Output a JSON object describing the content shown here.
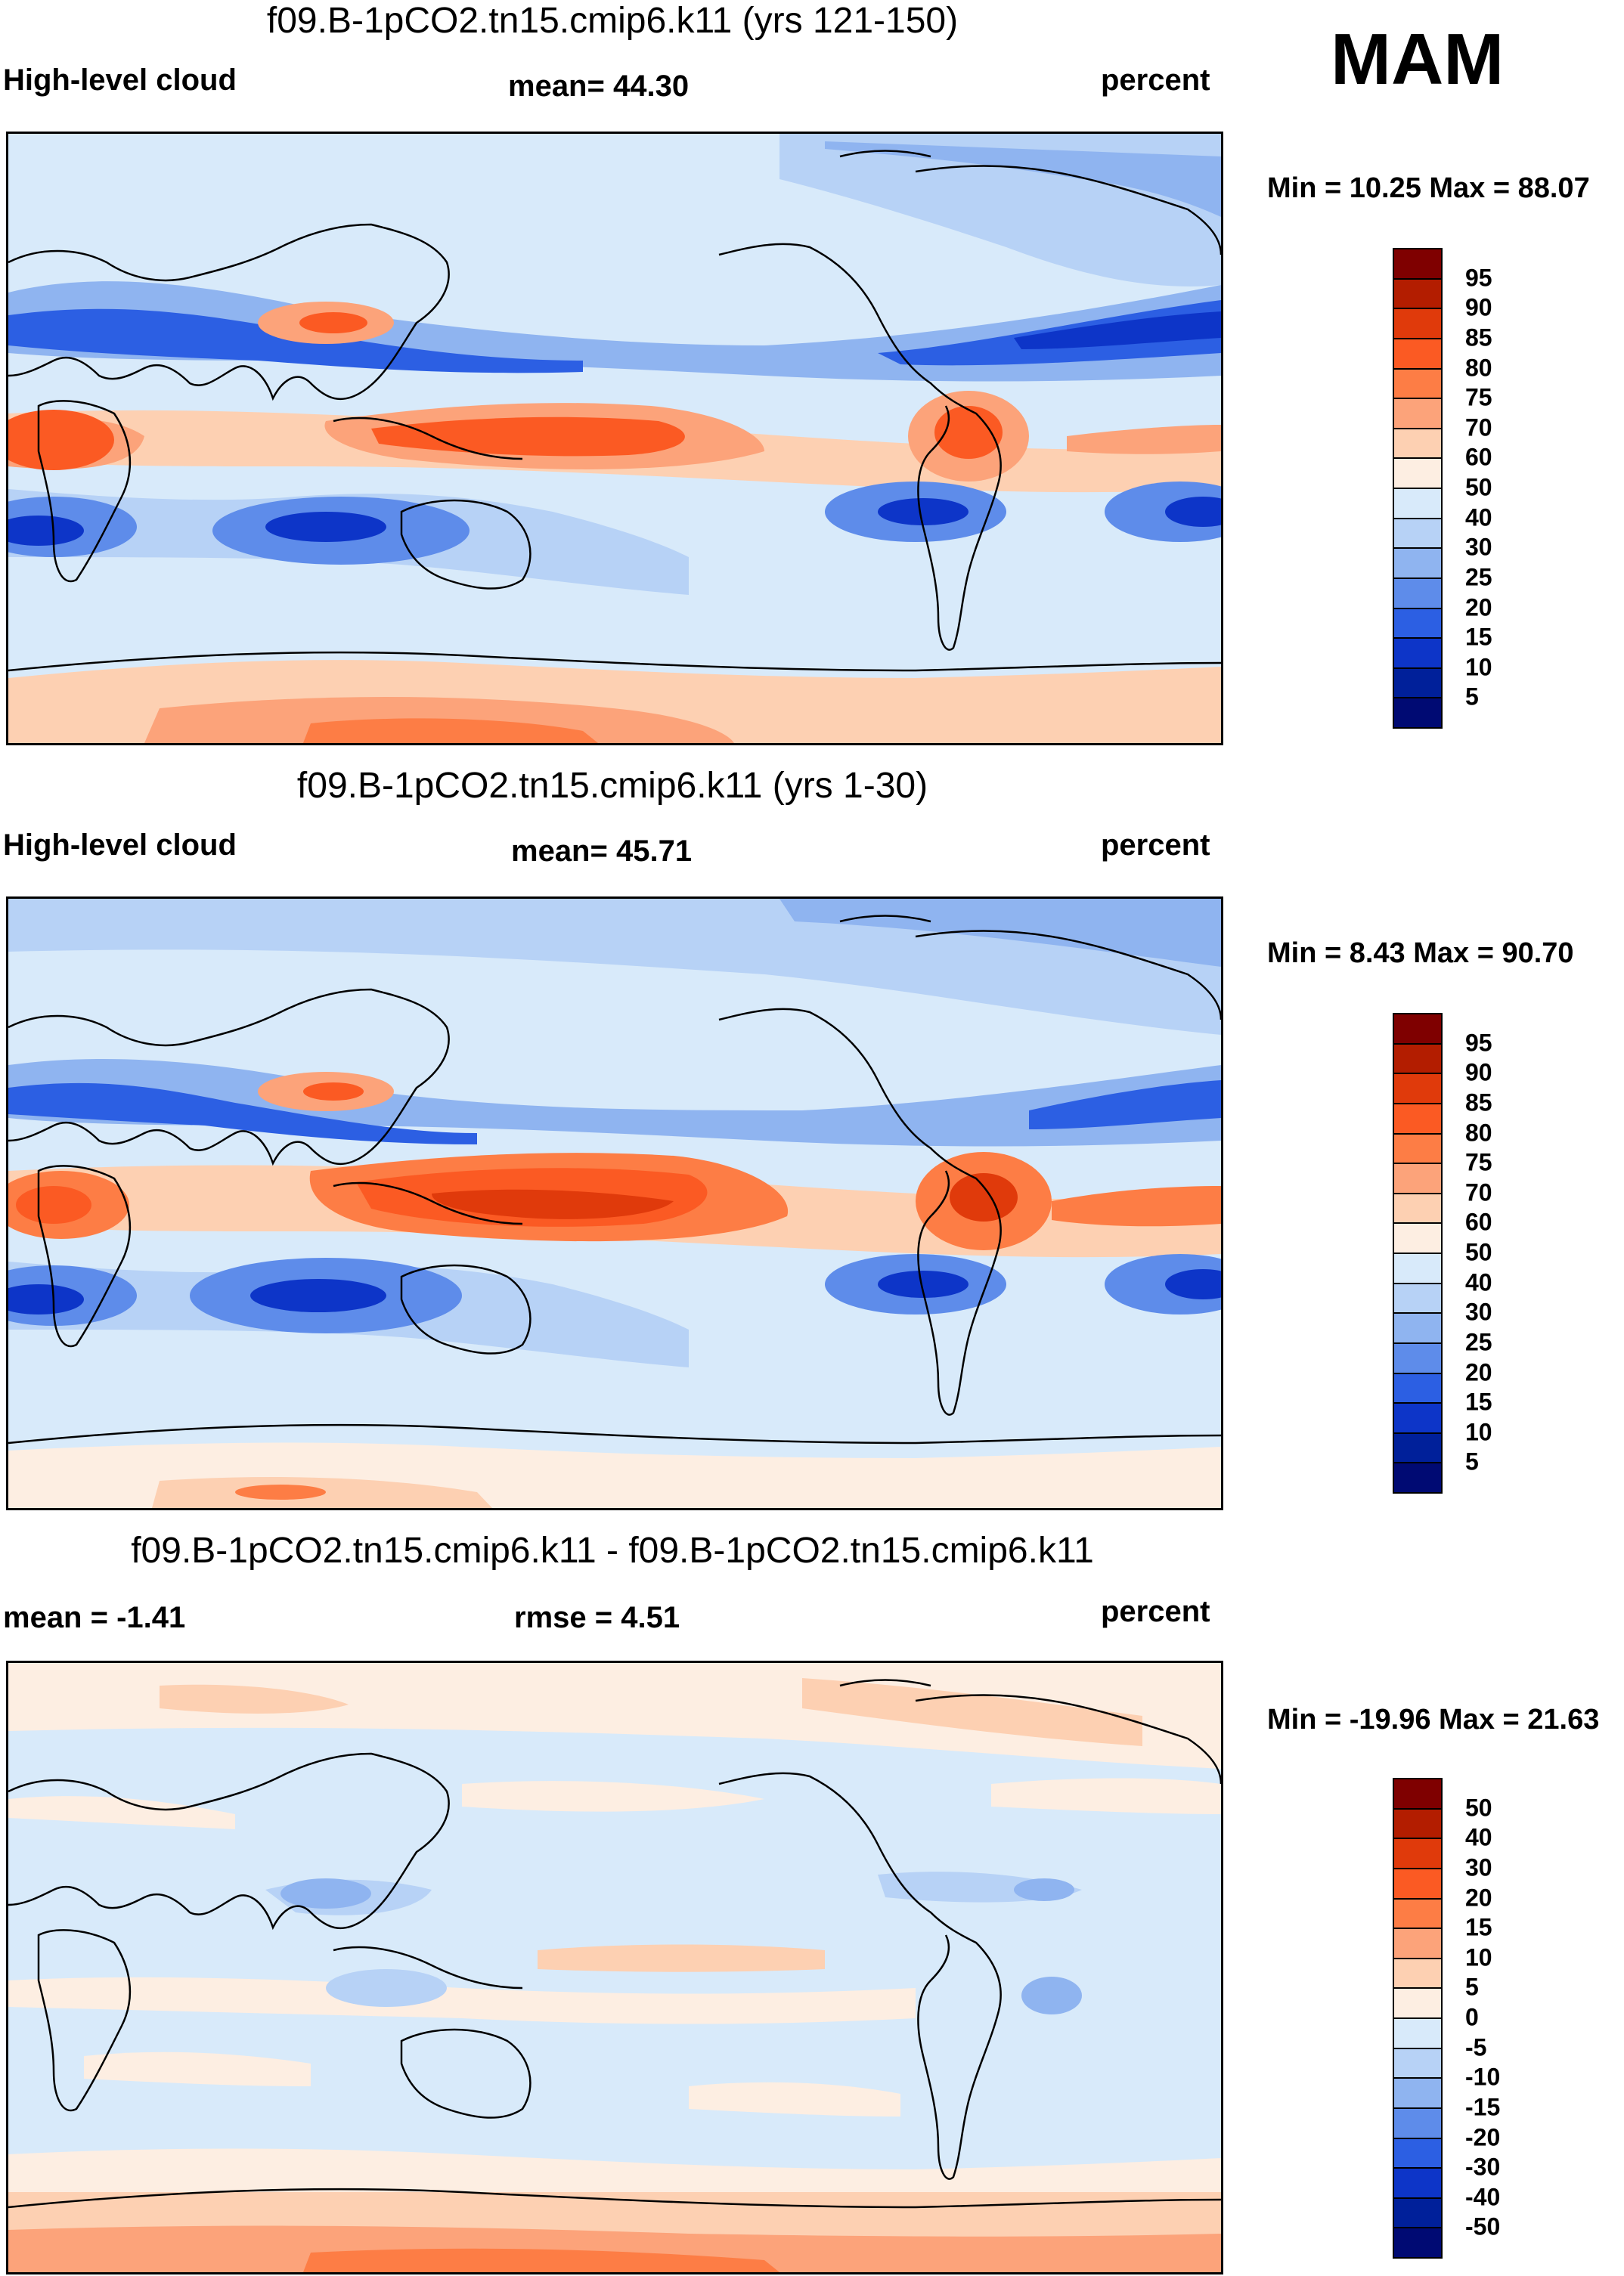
{
  "season": "MAM",
  "panels": [
    {
      "title": "f09.B-1pCO2.tn15.cmip6.k11 (yrs 121-150)",
      "left_label": "High-level cloud",
      "center_label": "mean=  44.30",
      "right_label": "percent",
      "minmax": "Min =  10.25 Max =  88.07",
      "colorbar_labels": [
        "95",
        "90",
        "85",
        "80",
        "75",
        "70",
        "60",
        "50",
        "40",
        "30",
        "25",
        "20",
        "15",
        "10",
        "5"
      ],
      "colorbar_colors": [
        "#7f0000",
        "#b31d00",
        "#e03a0b",
        "#fb5a23",
        "#fd7d45",
        "#fca37a",
        "#fdd0b2",
        "#fdeee2",
        "#d8eafa",
        "#b7d2f6",
        "#8fb4f0",
        "#5e8cea",
        "#2c5fe3",
        "#0d35c8",
        "#00209a",
        "#000a73"
      ]
    },
    {
      "title": "f09.B-1pCO2.tn15.cmip6.k11 (yrs 1-30)",
      "left_label": "High-level cloud",
      "center_label": "mean=  45.71",
      "right_label": "percent",
      "minmax": "Min =   8.43 Max =  90.70",
      "colorbar_labels": [
        "95",
        "90",
        "85",
        "80",
        "75",
        "70",
        "60",
        "50",
        "40",
        "30",
        "25",
        "20",
        "15",
        "10",
        "5"
      ],
      "colorbar_colors": [
        "#7f0000",
        "#b31d00",
        "#e03a0b",
        "#fb5a23",
        "#fd7d45",
        "#fca37a",
        "#fdd0b2",
        "#fdeee2",
        "#d8eafa",
        "#b7d2f6",
        "#8fb4f0",
        "#5e8cea",
        "#2c5fe3",
        "#0d35c8",
        "#00209a",
        "#000a73"
      ]
    },
    {
      "title": "f09.B-1pCO2.tn15.cmip6.k11 - f09.B-1pCO2.tn15.cmip6.k11",
      "left_label": "mean =  -1.41",
      "center_label": "rmse =    4.51",
      "right_label": "percent",
      "minmax": "Min = -19.96 Max =  21.63",
      "colorbar_labels": [
        "50",
        "40",
        "30",
        "20",
        "15",
        "10",
        "5",
        "0",
        "-5",
        "-10",
        "-15",
        "-20",
        "-30",
        "-40",
        "-50"
      ],
      "colorbar_colors": [
        "#7f0000",
        "#b31d00",
        "#e03a0b",
        "#fb5a23",
        "#fd7d45",
        "#fca37a",
        "#fdd0b2",
        "#fdeee2",
        "#d8eafa",
        "#b7d2f6",
        "#8fb4f0",
        "#5e8cea",
        "#2c5fe3",
        "#0d35c8",
        "#00209a",
        "#000a73"
      ]
    }
  ]
}
